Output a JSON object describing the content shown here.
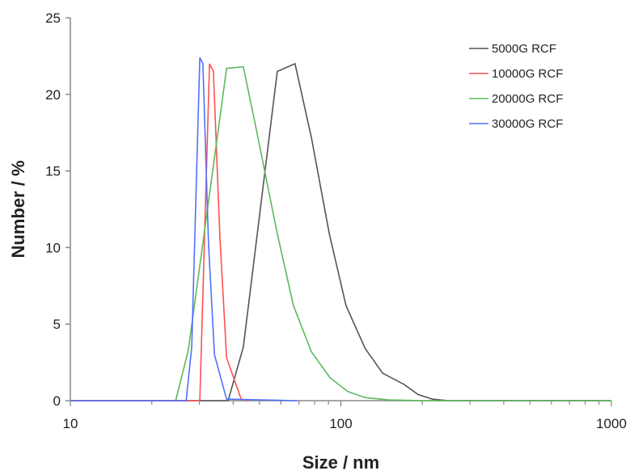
{
  "chart_data": {
    "type": "line",
    "xlabel": "Size / nm",
    "ylabel": "Number / %",
    "xscale": "log",
    "xlim": [
      10,
      1000
    ],
    "ylim": [
      0,
      25
    ],
    "xticks": [
      "10",
      "100",
      "1000"
    ],
    "yticks": [
      "0",
      "5",
      "10",
      "15",
      "20",
      "25"
    ],
    "grid": false,
    "legend_position": "top-right",
    "series": [
      {
        "name": "5000G RCF",
        "color": "#555555",
        "x": [
          10,
          38.3,
          43.6,
          58.2,
          67.7,
          77.8,
          90.6,
          104.5,
          123,
          142.6,
          171.7,
          193,
          218,
          250,
          1000
        ],
        "y": [
          0,
          0,
          3.5,
          21.5,
          22,
          17.2,
          10.9,
          6.2,
          3.4,
          1.8,
          1.05,
          0.4,
          0.1,
          0,
          0
        ]
      },
      {
        "name": "10000G RCF",
        "color": "#ff5050",
        "x": [
          10,
          30.1,
          32.7,
          33.8,
          35.7,
          37.8,
          42.8,
          45
        ],
        "y": [
          0,
          0,
          22,
          21.5,
          10.7,
          2.8,
          0.1,
          0
        ]
      },
      {
        "name": "20000G RCF",
        "color": "#5cb85c",
        "x": [
          24.5,
          27.3,
          37.8,
          43.6,
          48.7,
          58.2,
          66.8,
          77.8,
          91.2,
          106,
          123,
          150,
          200,
          1000
        ],
        "y": [
          0,
          3.3,
          21.7,
          21.8,
          17.7,
          10.9,
          6.2,
          3.2,
          1.5,
          0.6,
          0.2,
          0.05,
          0,
          0
        ]
      },
      {
        "name": "30000G RCF",
        "color": "#5070ff",
        "x": [
          10,
          26.8,
          28.1,
          30.1,
          30.9,
          32.4,
          34.1,
          37.8,
          69
        ],
        "y": [
          0,
          0,
          3.5,
          22.4,
          22,
          10.3,
          3,
          0.1,
          0
        ]
      }
    ]
  }
}
